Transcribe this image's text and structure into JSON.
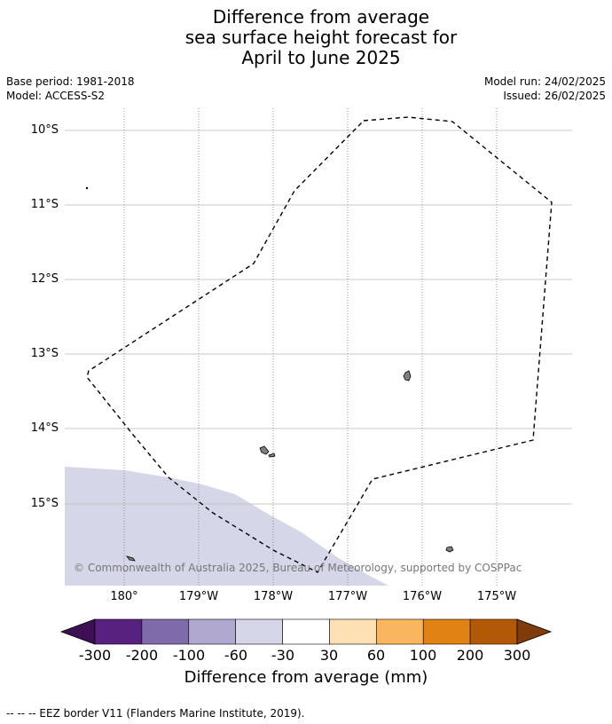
{
  "title": {
    "line1": "Difference from average",
    "line2": "sea surface height forecast for",
    "line3": "April to June 2025"
  },
  "meta": {
    "base_period": "Base period: 1981-2018",
    "model": "Model: ACCESS-S2",
    "model_run": "Model run: 24/02/2025",
    "issued": "Issued: 26/02/2025"
  },
  "map": {
    "lat_labels": [
      "10°S",
      "11°S",
      "12°S",
      "13°S",
      "14°S",
      "15°S"
    ],
    "lon_labels": [
      "180°",
      "179°W",
      "178°W",
      "177°W",
      "176°W",
      "175°W"
    ],
    "copyright": "© Commonwealth of Australia 2025, Bureau of Meteorology, supported by COSPPac",
    "anomaly_color": "#d5d7e8",
    "land_color": "#808080"
  },
  "colorbar": {
    "title": "Difference from average (mm)",
    "ticks": [
      "-300",
      "-200",
      "-100",
      "-60",
      "-30",
      "30",
      "60",
      "100",
      "200",
      "300"
    ],
    "colors": [
      "#3d0f55",
      "#58207f",
      "#7f6bab",
      "#b1a8d0",
      "#d5d7e8",
      "#ffffff",
      "#fde0b3",
      "#f9b65e",
      "#e08214",
      "#b35806",
      "#7f3b08"
    ]
  },
  "footnote": "--  --  -- EEZ border V11 (Flanders Marine Institute, 2019)."
}
